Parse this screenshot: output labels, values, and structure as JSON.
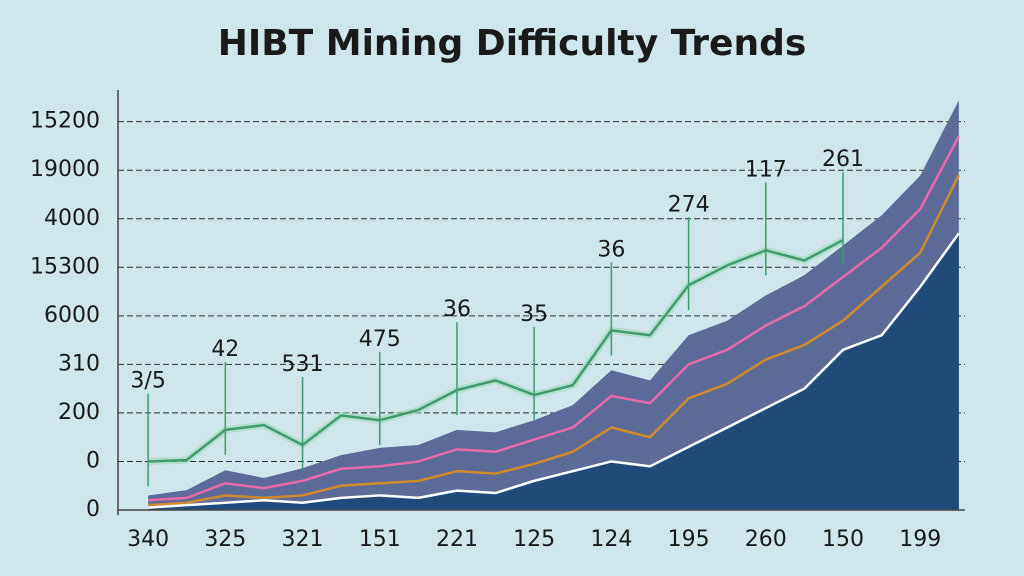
{
  "chart_data": {
    "type": "area",
    "title": "HIBT Mining Difficulty Trends",
    "categories": [
      "340",
      "325",
      "321",
      "151",
      "221",
      "125",
      "124",
      "195",
      "260",
      "150",
      "199"
    ],
    "y_axis_labels": [
      "0",
      "0",
      "200",
      "310",
      "6000",
      "15300",
      "4000",
      "19000",
      "15200"
    ],
    "ylim": [
      0,
      8.9
    ],
    "xlim": [
      -0.39,
      10.58
    ],
    "grid": true,
    "x": [
      0,
      0.5,
      1,
      1.5,
      2,
      2.5,
      3,
      3.5,
      4,
      4.5,
      5,
      5.5,
      6,
      6.5,
      7,
      7.5,
      8,
      8.5,
      9,
      9.5,
      10,
      10.5
    ],
    "series": [
      {
        "color": "#5c6b98",
        "style": "area",
        "values": [
          0.3,
          0.41,
          0.82,
          0.66,
          0.86,
          1.13,
          1.28,
          1.34,
          1.65,
          1.6,
          1.85,
          2.16,
          2.88,
          2.67,
          3.6,
          3.9,
          4.42,
          4.84,
          5.45,
          6.07,
          6.89,
          8.44
        ]
      },
      {
        "color": "#1f4a7a",
        "style": "area",
        "values": [
          0.05,
          0.1,
          0.15,
          0.2,
          0.15,
          0.25,
          0.3,
          0.25,
          0.4,
          0.35,
          0.6,
          0.8,
          1.0,
          0.9,
          1.3,
          1.7,
          2.1,
          2.5,
          3.3,
          3.6,
          4.6,
          5.7
        ]
      },
      {
        "color": "#e86aa8",
        "style": "line",
        "values": [
          0.2,
          0.25,
          0.55,
          0.45,
          0.6,
          0.85,
          0.9,
          1.0,
          1.25,
          1.2,
          1.45,
          1.7,
          2.35,
          2.2,
          3.0,
          3.3,
          3.8,
          4.2,
          4.8,
          5.4,
          6.2,
          7.7
        ]
      },
      {
        "color": "#d08a2c",
        "style": "line",
        "values": [
          0.1,
          0.15,
          0.3,
          0.25,
          0.3,
          0.5,
          0.55,
          0.6,
          0.8,
          0.75,
          0.95,
          1.2,
          1.7,
          1.5,
          2.3,
          2.6,
          3.1,
          3.4,
          3.9,
          4.6,
          5.3,
          6.9
        ]
      },
      {
        "color": "#ffffff",
        "style": "line",
        "values": [
          0.05,
          0.1,
          0.15,
          0.2,
          0.15,
          0.25,
          0.3,
          0.25,
          0.4,
          0.35,
          0.6,
          0.8,
          1.0,
          0.9,
          1.3,
          1.7,
          2.1,
          2.5,
          3.3,
          3.6,
          4.6,
          5.7
        ]
      },
      {
        "color": "#3f9c70",
        "style": "line",
        "values": [
          1,
          1.03,
          1.65,
          1.75,
          1.34,
          1.95,
          1.85,
          2.06,
          2.47,
          2.67,
          2.37,
          2.57,
          3.7,
          3.6,
          4.63,
          5.04,
          5.35,
          5.14,
          5.56,
          null,
          null,
          null
        ]
      }
    ],
    "annotations": [
      "3/5",
      "42",
      "531",
      "475",
      "36",
      "35",
      "36",
      "274",
      "117",
      "261",
      null
    ]
  }
}
